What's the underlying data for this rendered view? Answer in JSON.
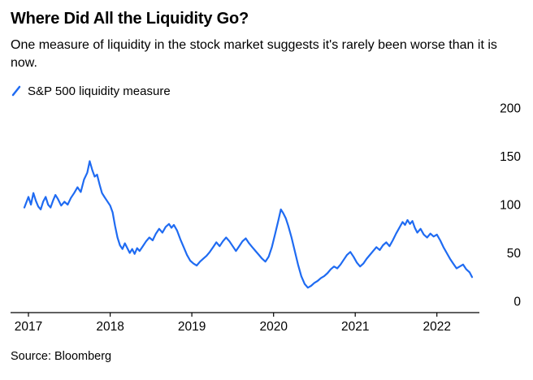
{
  "header": {
    "title": "Where Did All the Liquidity Go?",
    "subtitle": "One measure of liquidity in the stock market suggests it's rarely been worse than it is now."
  },
  "legend": {
    "label": "S&P 500 liquidity measure",
    "marker_color": "#1f6bf2"
  },
  "footer": {
    "source": "Source: Bloomberg"
  },
  "chart_data": {
    "type": "line",
    "title": "Where Did All the Liquidity Go?",
    "xlabel": "",
    "ylabel": "",
    "xlim": [
      2016.93,
      2022.5
    ],
    "ylim": [
      0,
      200
    ],
    "xticks": [
      2017,
      2018,
      2019,
      2020,
      2021,
      2022
    ],
    "yticks": [
      0,
      50,
      100,
      150,
      200
    ],
    "grid": false,
    "y_axis_side": "right",
    "legend_position": "top-left",
    "series": [
      {
        "name": "S&P 500 liquidity measure",
        "color": "#1f6bf2",
        "points": [
          [
            2016.95,
            97
          ],
          [
            2017.0,
            108
          ],
          [
            2017.03,
            100
          ],
          [
            2017.06,
            112
          ],
          [
            2017.09,
            104
          ],
          [
            2017.12,
            98
          ],
          [
            2017.15,
            95
          ],
          [
            2017.18,
            103
          ],
          [
            2017.21,
            108
          ],
          [
            2017.24,
            100
          ],
          [
            2017.27,
            97
          ],
          [
            2017.3,
            104
          ],
          [
            2017.33,
            110
          ],
          [
            2017.36,
            106
          ],
          [
            2017.4,
            99
          ],
          [
            2017.44,
            103
          ],
          [
            2017.48,
            100
          ],
          [
            2017.52,
            107
          ],
          [
            2017.56,
            112
          ],
          [
            2017.6,
            118
          ],
          [
            2017.64,
            113
          ],
          [
            2017.68,
            126
          ],
          [
            2017.72,
            133
          ],
          [
            2017.75,
            145
          ],
          [
            2017.78,
            136
          ],
          [
            2017.81,
            129
          ],
          [
            2017.84,
            131
          ],
          [
            2017.87,
            121
          ],
          [
            2017.9,
            112
          ],
          [
            2017.93,
            108
          ],
          [
            2017.96,
            104
          ],
          [
            2018.0,
            99
          ],
          [
            2018.03,
            92
          ],
          [
            2018.06,
            78
          ],
          [
            2018.09,
            66
          ],
          [
            2018.12,
            58
          ],
          [
            2018.15,
            54
          ],
          [
            2018.18,
            60
          ],
          [
            2018.21,
            55
          ],
          [
            2018.24,
            50
          ],
          [
            2018.27,
            54
          ],
          [
            2018.3,
            49
          ],
          [
            2018.33,
            55
          ],
          [
            2018.36,
            52
          ],
          [
            2018.4,
            57
          ],
          [
            2018.44,
            62
          ],
          [
            2018.48,
            66
          ],
          [
            2018.52,
            63
          ],
          [
            2018.56,
            70
          ],
          [
            2018.6,
            75
          ],
          [
            2018.64,
            71
          ],
          [
            2018.68,
            77
          ],
          [
            2018.72,
            80
          ],
          [
            2018.75,
            76
          ],
          [
            2018.78,
            79
          ],
          [
            2018.82,
            73
          ],
          [
            2018.86,
            64
          ],
          [
            2018.9,
            56
          ],
          [
            2018.94,
            48
          ],
          [
            2018.98,
            42
          ],
          [
            2019.02,
            39
          ],
          [
            2019.06,
            37
          ],
          [
            2019.1,
            41
          ],
          [
            2019.14,
            44
          ],
          [
            2019.18,
            47
          ],
          [
            2019.22,
            51
          ],
          [
            2019.26,
            56
          ],
          [
            2019.3,
            61
          ],
          [
            2019.34,
            57
          ],
          [
            2019.38,
            62
          ],
          [
            2019.42,
            66
          ],
          [
            2019.46,
            62
          ],
          [
            2019.5,
            57
          ],
          [
            2019.54,
            52
          ],
          [
            2019.58,
            57
          ],
          [
            2019.62,
            62
          ],
          [
            2019.66,
            65
          ],
          [
            2019.7,
            60
          ],
          [
            2019.74,
            56
          ],
          [
            2019.78,
            52
          ],
          [
            2019.82,
            48
          ],
          [
            2019.86,
            44
          ],
          [
            2019.9,
            41
          ],
          [
            2019.94,
            46
          ],
          [
            2019.98,
            56
          ],
          [
            2020.02,
            70
          ],
          [
            2020.06,
            84
          ],
          [
            2020.09,
            95
          ],
          [
            2020.12,
            91
          ],
          [
            2020.15,
            86
          ],
          [
            2020.18,
            78
          ],
          [
            2020.22,
            66
          ],
          [
            2020.26,
            52
          ],
          [
            2020.3,
            38
          ],
          [
            2020.34,
            26
          ],
          [
            2020.38,
            18
          ],
          [
            2020.42,
            14
          ],
          [
            2020.46,
            16
          ],
          [
            2020.5,
            19
          ],
          [
            2020.54,
            21
          ],
          [
            2020.58,
            24
          ],
          [
            2020.62,
            26
          ],
          [
            2020.66,
            29
          ],
          [
            2020.7,
            33
          ],
          [
            2020.74,
            36
          ],
          [
            2020.78,
            34
          ],
          [
            2020.82,
            38
          ],
          [
            2020.86,
            43
          ],
          [
            2020.9,
            48
          ],
          [
            2020.94,
            51
          ],
          [
            2020.98,
            46
          ],
          [
            2021.02,
            40
          ],
          [
            2021.06,
            36
          ],
          [
            2021.1,
            39
          ],
          [
            2021.14,
            44
          ],
          [
            2021.18,
            48
          ],
          [
            2021.22,
            52
          ],
          [
            2021.26,
            56
          ],
          [
            2021.3,
            53
          ],
          [
            2021.34,
            58
          ],
          [
            2021.38,
            61
          ],
          [
            2021.42,
            57
          ],
          [
            2021.46,
            63
          ],
          [
            2021.5,
            70
          ],
          [
            2021.54,
            76
          ],
          [
            2021.58,
            82
          ],
          [
            2021.61,
            79
          ],
          [
            2021.64,
            84
          ],
          [
            2021.67,
            80
          ],
          [
            2021.7,
            83
          ],
          [
            2021.73,
            76
          ],
          [
            2021.76,
            71
          ],
          [
            2021.8,
            75
          ],
          [
            2021.84,
            69
          ],
          [
            2021.88,
            66
          ],
          [
            2021.92,
            70
          ],
          [
            2021.96,
            67
          ],
          [
            2022.0,
            69
          ],
          [
            2022.04,
            63
          ],
          [
            2022.08,
            56
          ],
          [
            2022.12,
            50
          ],
          [
            2022.16,
            44
          ],
          [
            2022.2,
            39
          ],
          [
            2022.24,
            34
          ],
          [
            2022.28,
            36
          ],
          [
            2022.32,
            38
          ],
          [
            2022.36,
            33
          ],
          [
            2022.4,
            30
          ],
          [
            2022.43,
            25
          ]
        ]
      }
    ]
  }
}
